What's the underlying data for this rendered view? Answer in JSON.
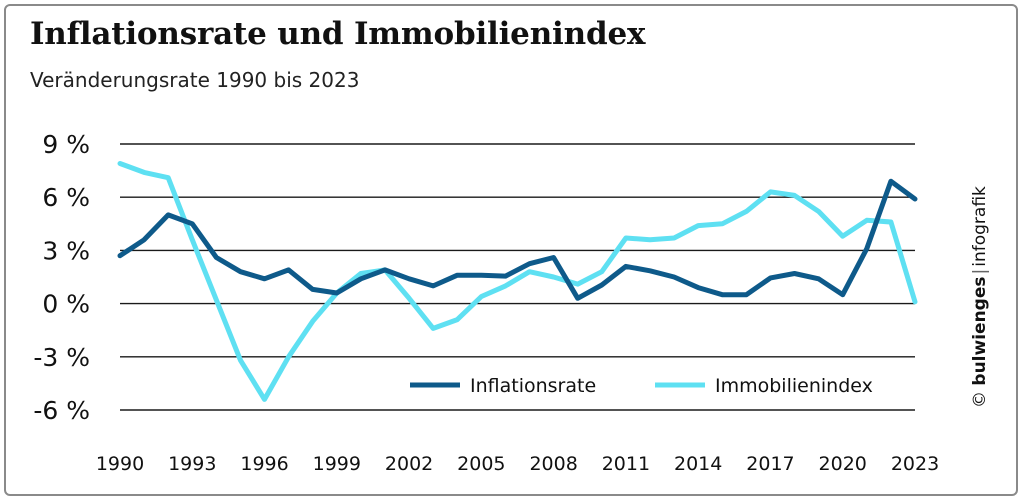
{
  "title": "Inflationsrate und Immobilienindex",
  "subtitle": "Veränderungsrate 1990 bis 2023",
  "credit": {
    "copyright": "©",
    "brand": "bulwienges",
    "separator": "|",
    "label": "infografik"
  },
  "chart_data": {
    "type": "line",
    "x": [
      1990,
      1991,
      1992,
      1993,
      1994,
      1995,
      1996,
      1997,
      1998,
      1999,
      2000,
      2001,
      2002,
      2003,
      2004,
      2005,
      2006,
      2007,
      2008,
      2009,
      2010,
      2011,
      2012,
      2013,
      2014,
      2015,
      2016,
      2017,
      2018,
      2019,
      2020,
      2021,
      2022,
      2023
    ],
    "xticks": [
      1990,
      1993,
      1996,
      1999,
      2002,
      2005,
      2008,
      2011,
      2014,
      2017,
      2020,
      2023
    ],
    "xtick_labels": [
      "1990",
      "1993",
      "1996",
      "1999",
      "2002",
      "2005",
      "2008",
      "2011",
      "2014",
      "2017",
      "2020",
      "2023"
    ],
    "yticks": [
      9,
      6,
      3,
      0,
      -3,
      -6
    ],
    "ytick_labels": [
      "9 %",
      "6 %",
      "3 %",
      "0 %",
      "-3 %",
      "-6 %"
    ],
    "ylim": [
      -6,
      9
    ],
    "grid": true,
    "legend_position": "bottom-right",
    "series": [
      {
        "name": "Inflationsrate",
        "color": "#0e5a8a",
        "values": [
          2.7,
          3.6,
          5.0,
          4.5,
          2.6,
          1.8,
          1.4,
          1.9,
          0.8,
          0.6,
          1.4,
          1.9,
          1.4,
          1.0,
          1.6,
          1.6,
          1.55,
          2.25,
          2.6,
          0.3,
          1.05,
          2.1,
          1.85,
          1.5,
          0.9,
          0.5,
          0.5,
          1.45,
          1.7,
          1.4,
          0.5,
          3.1,
          6.9,
          5.9
        ]
      },
      {
        "name": "Immobilienindex",
        "color": "#5ee0f2",
        "values": [
          7.9,
          7.4,
          7.1,
          3.6,
          0.2,
          -3.2,
          -5.4,
          -3.0,
          -1.0,
          0.6,
          1.7,
          1.9,
          0.3,
          -1.4,
          -0.9,
          0.4,
          1.0,
          1.8,
          1.5,
          1.1,
          1.8,
          3.7,
          3.6,
          3.7,
          4.4,
          4.5,
          5.2,
          6.3,
          6.1,
          5.2,
          3.8,
          4.7,
          4.6,
          0.1
        ]
      }
    ]
  }
}
